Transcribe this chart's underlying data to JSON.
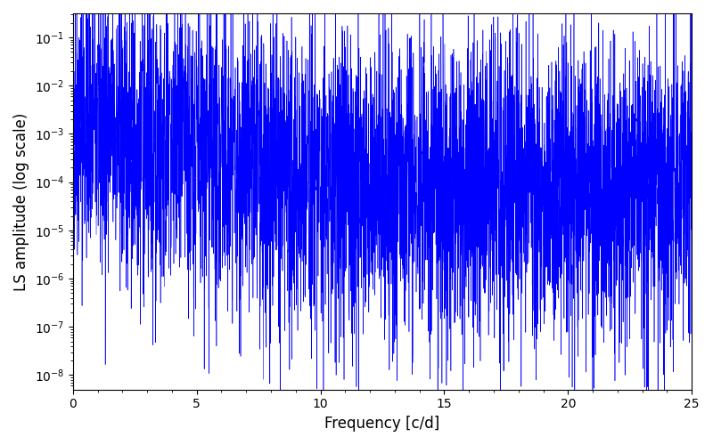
{
  "xlabel": "Frequency [c/d]",
  "ylabel": "LS amplitude (log scale)",
  "line_color": "#0000ff",
  "xlim": [
    0,
    25
  ],
  "ylim_log_min": -8.3,
  "ylim_log_max": -0.5,
  "background_color": "#ffffff",
  "figsize": [
    8.0,
    5.0
  ],
  "dpi": 100,
  "seed": 42,
  "n_points": 5000,
  "freq_max": 25.0,
  "linewidth": 0.4
}
